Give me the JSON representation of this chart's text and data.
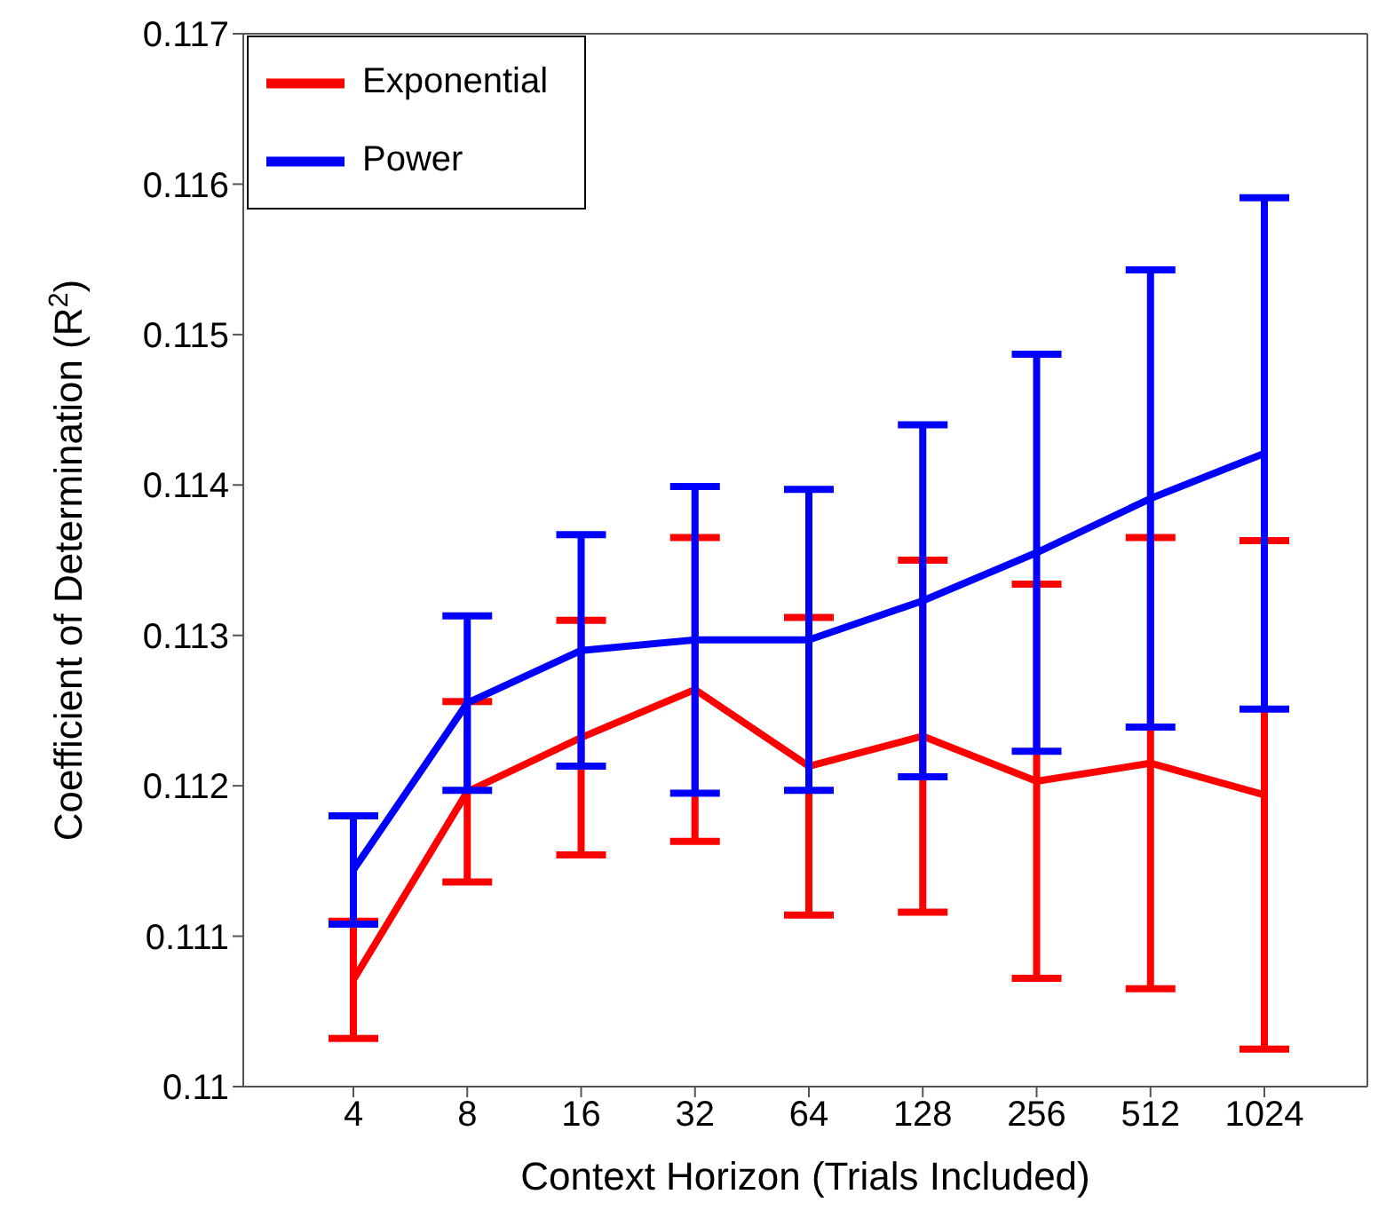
{
  "chart_data": {
    "type": "line",
    "xlabel": "Context Horizon (Trials Included)",
    "ylabel": "Coefficient of Determination (R$^{2}$)",
    "categories": [
      "4",
      "8",
      "16",
      "32",
      "64",
      "128",
      "256",
      "512",
      "1024"
    ],
    "series": [
      {
        "name": "Exponential",
        "color": "#ff0000",
        "values": [
          0.11071,
          0.11196,
          0.11232,
          0.11264,
          0.11213,
          0.11233,
          0.11203,
          0.11215,
          0.11194
        ],
        "errors": [
          0.00039,
          0.0006,
          0.00078,
          0.00101,
          0.00099,
          0.00117,
          0.00131,
          0.0015,
          0.00169
        ]
      },
      {
        "name": "Power",
        "color": "#0000ff",
        "values": [
          0.11144,
          0.11255,
          0.1129,
          0.11297,
          0.11297,
          0.11323,
          0.11355,
          0.11391,
          0.11421
        ],
        "errors": [
          0.00036,
          0.00058,
          0.00077,
          0.00102,
          0.001,
          0.00117,
          0.00132,
          0.00152,
          0.0017
        ]
      }
    ],
    "ylim": [
      0.11,
      0.117
    ],
    "yticks": [
      0.11,
      0.111,
      0.112,
      0.113,
      0.114,
      0.115,
      0.116,
      0.117
    ],
    "legend": "top left",
    "grid": false,
    "marker": "none",
    "line_style": "solid"
  }
}
